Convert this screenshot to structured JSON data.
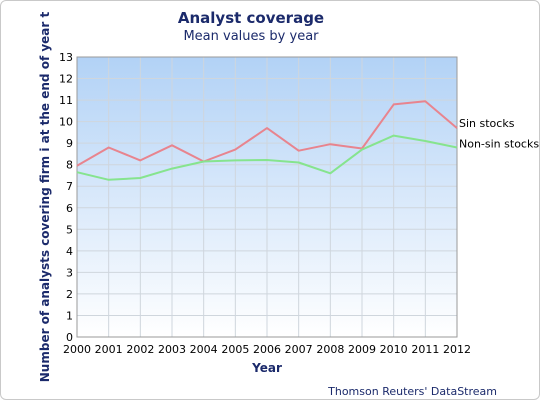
{
  "chart_data": {
    "type": "line",
    "title": "Analyst coverage",
    "subtitle": "Mean values by year",
    "xlabel": "Year",
    "ylabel": "Number of analysts covering firm i at the end of year t",
    "credit": "Thomson Reuters' DataStream",
    "x": [
      2000,
      2001,
      2002,
      2003,
      2004,
      2005,
      2006,
      2007,
      2008,
      2009,
      2010,
      2011,
      2012
    ],
    "ylim": [
      0,
      13
    ],
    "yticks": [
      0,
      1,
      2,
      3,
      4,
      5,
      6,
      7,
      8,
      9,
      10,
      11,
      12,
      13
    ],
    "grid": true,
    "legend": "line-end labels on right",
    "series": [
      {
        "name": "Sin stocks",
        "color": "#e8848e",
        "values": [
          7.95,
          8.8,
          8.2,
          8.9,
          8.15,
          8.7,
          9.7,
          8.65,
          8.95,
          8.75,
          10.8,
          10.95,
          9.7
        ]
      },
      {
        "name": "Non-sin stocks",
        "color": "#86e48e",
        "values": [
          7.65,
          7.3,
          7.38,
          7.82,
          8.15,
          8.2,
          8.22,
          8.1,
          7.6,
          8.7,
          9.35,
          9.1,
          8.8
        ]
      }
    ]
  }
}
